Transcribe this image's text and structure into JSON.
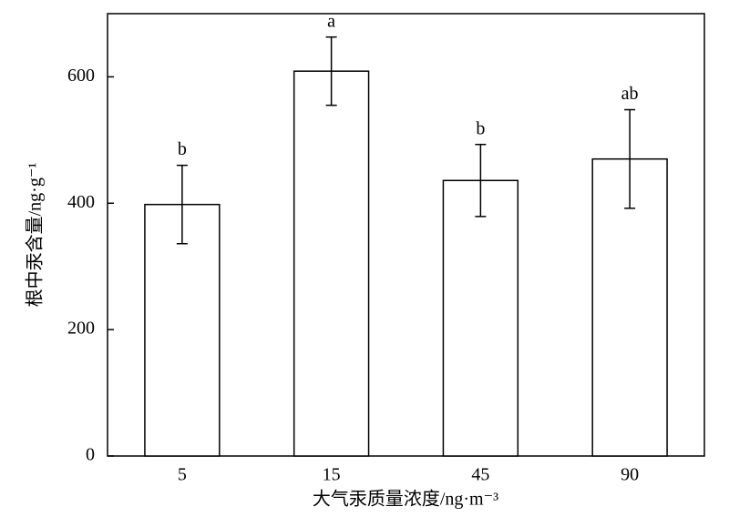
{
  "chart_data": {
    "type": "bar",
    "x_label": "大气汞质量浓度/ng·m⁻³",
    "y_label": "根中汞含量/ng·g⁻¹",
    "categories": [
      "5",
      "15",
      "45",
      "90"
    ],
    "values": [
      398,
      609,
      436,
      470
    ],
    "errors": [
      62,
      54,
      57,
      78
    ],
    "letters": [
      "b",
      "a",
      "b",
      "ab"
    ],
    "color": "#ffffff",
    "ylim": [
      0,
      700
    ],
    "yticks": [
      0,
      200,
      400,
      600
    ],
    "grid": false
  }
}
